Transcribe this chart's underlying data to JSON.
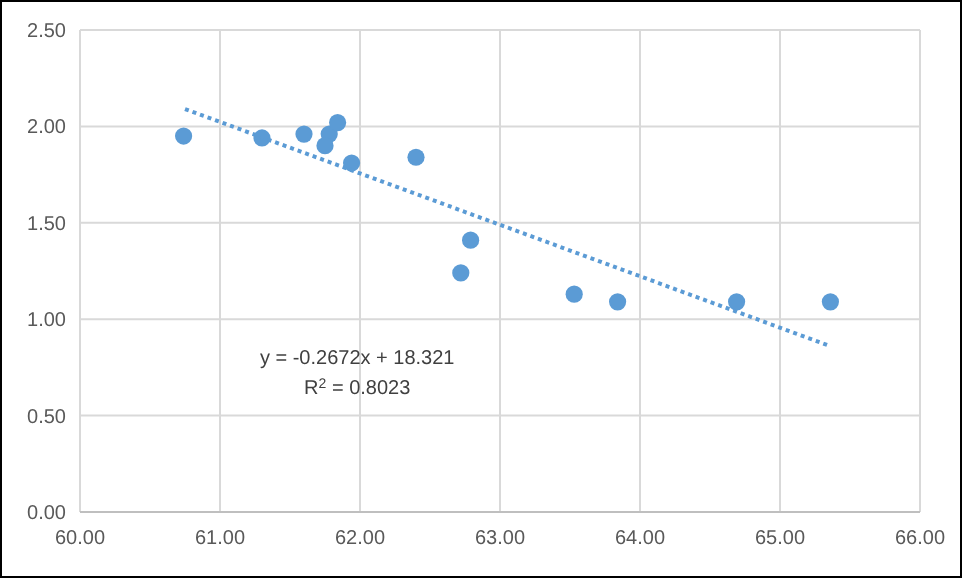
{
  "chart_data": {
    "type": "scatter",
    "x": [
      60.74,
      61.3,
      61.6,
      61.78,
      61.75,
      61.84,
      61.94,
      62.4,
      62.79,
      62.72,
      63.53,
      63.84,
      64.69,
      65.36
    ],
    "series": [
      {
        "color": "#5b9bd5",
        "values": [
          1.95,
          1.94,
          1.96,
          1.96,
          1.9,
          2.02,
          1.81,
          1.84,
          1.41,
          1.24,
          1.13,
          1.09,
          1.09,
          1.09
        ],
        "marker": "circle"
      },
      {
        "type": "line",
        "color": "#5b9bd5",
        "x": [
          60.75,
          65.36
        ],
        "values": [
          2.09,
          0.86
        ],
        "line_style": "dotted"
      }
    ],
    "xlim": [
      60,
      66
    ],
    "ylim": [
      0,
      2.5
    ],
    "xticks": [
      {
        "value": 60,
        "label": "60.00"
      },
      {
        "value": 61,
        "label": "61.00"
      },
      {
        "value": 62,
        "label": "62.00"
      },
      {
        "value": 63,
        "label": "63.00"
      },
      {
        "value": 64,
        "label": "64.00"
      },
      {
        "value": 65,
        "label": "65.00"
      },
      {
        "value": 66,
        "label": "66.00"
      }
    ],
    "yticks": [
      {
        "value": 0,
        "label": "0.00"
      },
      {
        "value": 0.5,
        "label": "0.50"
      },
      {
        "value": 1,
        "label": "1.00"
      },
      {
        "value": 1.5,
        "label": "1.50"
      },
      {
        "value": 2,
        "label": "2.00"
      },
      {
        "value": 2.5,
        "label": "2.50"
      }
    ],
    "grid": true,
    "annotations": [
      "y = -0.2672x + 18.321",
      "R$^{2}$ = 0.8023"
    ]
  }
}
